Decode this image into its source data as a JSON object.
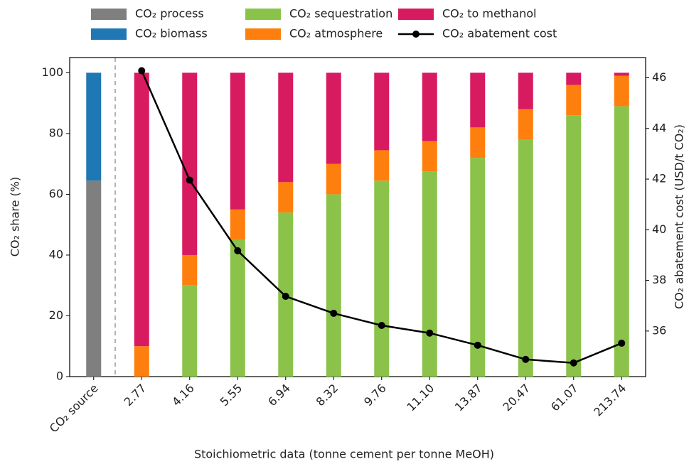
{
  "chart_data": {
    "type": "bar",
    "stacked": true,
    "xlabel": "Stoichiometric data (tonne cement per tonne MeOH)",
    "ylabel": "CO₂ share (%)",
    "y2label": "CO₂ abatement cost (USD/t CO₂)",
    "categories": [
      "CO₂ source",
      "2.77",
      "4.16",
      "5.55",
      "6.94",
      "8.32",
      "9.76",
      "11.10",
      "13.87",
      "20.47",
      "61.07",
      "213.74"
    ],
    "series": [
      {
        "name": "CO₂ process",
        "color": "#7f7f7f",
        "values": [
          64.5,
          0,
          0,
          0,
          0,
          0,
          0,
          0,
          0,
          0,
          0,
          0
        ]
      },
      {
        "name": "CO₂ biomass",
        "color": "#1f77b4",
        "values": [
          35.5,
          0,
          0,
          0,
          0,
          0,
          0,
          0,
          0,
          0,
          0,
          0
        ]
      },
      {
        "name": "CO₂ sequestration",
        "color": "#8bc34a",
        "values": [
          0,
          0,
          30,
          45,
          54,
          60,
          64.5,
          67.5,
          72,
          78,
          86,
          89
        ]
      },
      {
        "name": "CO₂ atmosphere",
        "color": "#ff7f0e",
        "values": [
          0,
          10,
          10,
          10,
          10,
          10,
          10,
          10,
          10,
          10,
          10,
          10
        ]
      },
      {
        "name": "CO₂ to methanol",
        "color": "#d81b60",
        "values": [
          0,
          90,
          60,
          45,
          36,
          30,
          25.5,
          22.5,
          18,
          12,
          4,
          1
        ]
      },
      {
        "name": "CO₂ abatement cost",
        "color": "#000000",
        "type": "line",
        "axis": "y2",
        "values": [
          null,
          46.28,
          41.96,
          39.17,
          37.37,
          36.7,
          36.22,
          35.92,
          35.44,
          34.88,
          34.74,
          35.52
        ]
      }
    ],
    "ylim": [
      0,
      105
    ],
    "yticks": [
      0,
      20,
      40,
      60,
      80,
      100
    ],
    "y2lim": [
      34.2,
      46.8
    ],
    "y2ticks": [
      36,
      38,
      40,
      42,
      44,
      46
    ],
    "legend": "top"
  }
}
